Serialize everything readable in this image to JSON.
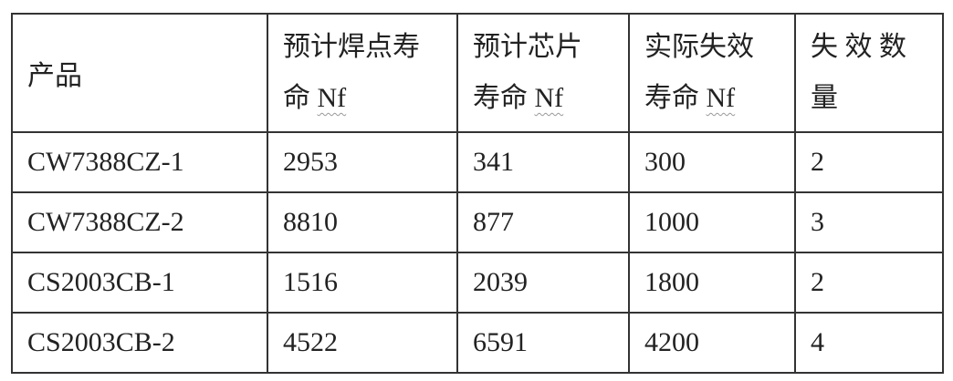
{
  "table": {
    "headers": [
      {
        "line1": "产品",
        "line2": "",
        "nf": ""
      },
      {
        "line1": "预计焊点寿",
        "line2": "命 ",
        "nf": "Nf"
      },
      {
        "line1": "预计芯片",
        "line2": "寿命 ",
        "nf": "Nf"
      },
      {
        "line1": "实际失效",
        "line2": "寿命 ",
        "nf": "Nf"
      },
      {
        "line1": "失 效 数",
        "line2": "量",
        "nf": ""
      }
    ],
    "rows": [
      [
        "CW7388CZ-1",
        "2953",
        "341",
        "300",
        "2"
      ],
      [
        "CW7388CZ-2",
        "8810",
        "877",
        "1000",
        "3"
      ],
      [
        "CS2003CB-1",
        "1516",
        "2039",
        "1800",
        "2"
      ],
      [
        "CS2003CB-2",
        "4522",
        "6591",
        "4200",
        "4"
      ]
    ]
  }
}
